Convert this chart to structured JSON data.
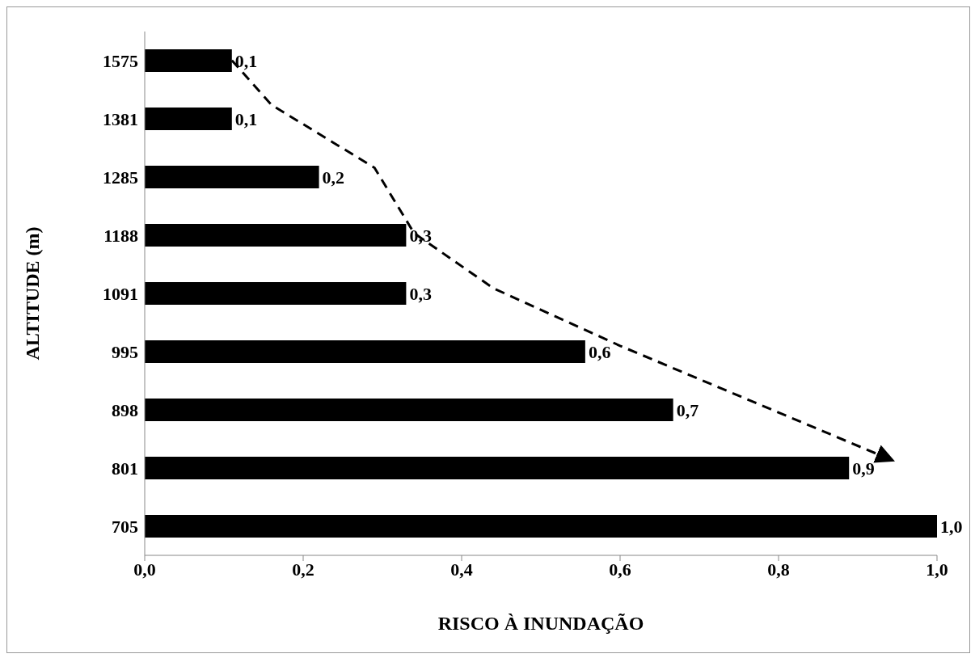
{
  "chart_data": {
    "type": "bar",
    "orientation": "horizontal",
    "xlabel": "RISCO À INUNDAÇÃO",
    "ylabel": "ALTITUDE (m)",
    "categories": [
      "1575",
      "1381",
      "1285",
      "1188",
      "1091",
      "995",
      "898",
      "801",
      "705"
    ],
    "values": [
      0.11,
      0.11,
      0.22,
      0.33,
      0.33,
      0.556,
      0.667,
      0.889,
      1.0
    ],
    "value_labels": [
      "0,1",
      "0,1",
      "0,2",
      "0,3",
      "0,3",
      "0,6",
      "0,7",
      "0,9",
      "1,0"
    ],
    "color": "#000000",
    "xlim": [
      0,
      1
    ],
    "xticks": [
      {
        "value": 0,
        "label": "0,0"
      },
      {
        "value": 0.2,
        "label": "0,2"
      },
      {
        "value": 0.4,
        "label": "0,4"
      },
      {
        "value": 0.6,
        "label": "0,6"
      },
      {
        "value": 0.8,
        "label": "0,8"
      },
      {
        "value": 1,
        "label": "1,0"
      }
    ],
    "grid": false,
    "legend": false
  }
}
